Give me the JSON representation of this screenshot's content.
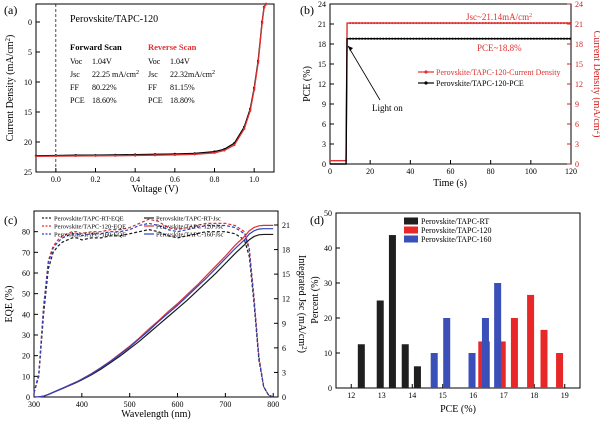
{
  "chart_data": [
    {
      "panel": "(a)",
      "type": "line",
      "legend_title": "Perovskite/TAPC-120",
      "xlabel": "Voltage (V)",
      "ylabel": "Current Density (mA/cm",
      "ylabel_sup": "2",
      "ylabel_end": ")",
      "xlim": [
        -0.1,
        1.1
      ],
      "ylim": [
        25,
        -3
      ],
      "xticks": [
        0.0,
        0.2,
        0.4,
        0.6,
        0.8,
        1.0
      ],
      "xtick_labels": [
        "0.0",
        "0.2",
        "0.4",
        "0.6",
        "0.8",
        "1.0"
      ],
      "yticks": [
        0,
        5,
        10,
        15,
        20,
        25
      ],
      "ytick_labels": [
        "0",
        "5",
        "10",
        "15",
        "20",
        "25"
      ],
      "series": [
        {
          "name": "Forward Scan",
          "color": "#000000",
          "x": [
            -0.1,
            0.0,
            0.1,
            0.2,
            0.3,
            0.4,
            0.5,
            0.6,
            0.7,
            0.8,
            0.85,
            0.9,
            0.95,
            0.98,
            1.0,
            1.02,
            1.04,
            1.05,
            1.06
          ],
          "y": [
            22.3,
            22.25,
            22.2,
            22.2,
            22.15,
            22.1,
            22.05,
            22.0,
            21.9,
            21.6,
            21.2,
            20.2,
            17.5,
            14.5,
            11.0,
            6.5,
            0.0,
            -2.5,
            -3.0
          ]
        },
        {
          "name": "Reverse Scan",
          "color": "#e03030",
          "x": [
            -0.1,
            0.0,
            0.1,
            0.2,
            0.3,
            0.4,
            0.5,
            0.6,
            0.7,
            0.8,
            0.85,
            0.9,
            0.95,
            0.98,
            1.0,
            1.02,
            1.04,
            1.05,
            1.06
          ],
          "y": [
            22.4,
            22.35,
            22.32,
            22.3,
            22.28,
            22.25,
            22.2,
            22.15,
            22.05,
            21.8,
            21.4,
            20.5,
            17.8,
            14.8,
            11.3,
            6.8,
            0.2,
            -2.4,
            -3.0
          ]
        }
      ],
      "table": {
        "forward_title": "Forward Scan",
        "reverse_title": "Reverse Scan",
        "rows": [
          {
            "k": "Voc",
            "f": "1.04V",
            "r": "1.04V"
          },
          {
            "k": "Jsc",
            "f": "22.25 mA/cm",
            "r": "22.32mA/cm",
            "sup": "2"
          },
          {
            "k": "FF",
            "f": "80.22%",
            "r": "81.15%"
          },
          {
            "k": "PCE",
            "f": "18.60%",
            "r": "18.80%"
          }
        ]
      }
    },
    {
      "panel": "(b)",
      "type": "line",
      "xlabel": "Time (s)",
      "ylabel": "PCE (%)",
      "ylabel_right": "Current Density (mA/cm",
      "ylabel_right_sup": "2",
      "ylabel_right_end": ")",
      "xlim": [
        0,
        120
      ],
      "ylim": [
        0,
        24
      ],
      "xticks": [
        0,
        20,
        40,
        60,
        80,
        100,
        120
      ],
      "yticks": [
        0,
        3,
        6,
        9,
        12,
        15,
        18,
        21,
        24
      ],
      "series": [
        {
          "name": "Perovskite/TAPC-120-Current Density",
          "color": "#e03030",
          "x": [
            0,
            8,
            8.5,
            9,
            120
          ],
          "y": [
            0.5,
            0.5,
            21.14,
            21.14,
            21.14
          ]
        },
        {
          "name": "Perovskite/TAPC-120-PCE",
          "color": "#000000",
          "x": [
            0,
            8,
            8.5,
            9,
            120
          ],
          "y": [
            0.0,
            0.0,
            18.8,
            18.8,
            18.8
          ]
        }
      ],
      "annotations": {
        "jsc": "Jsc~21.14mA/cm",
        "jsc_sup": "2",
        "pce": "PCE~18.8%",
        "light": "Light on"
      }
    },
    {
      "panel": "(c)",
      "type": "line",
      "xlabel": "Wavelength (nm)",
      "ylabel": "EQE (%)",
      "ylabel_right": "Integrated Jsc (mA/cm",
      "ylabel_right_sup": "2",
      "ylabel_right_end": ")",
      "xlim": [
        300,
        810
      ],
      "ylim": [
        0,
        90
      ],
      "ylim_right": [
        0,
        21
      ],
      "xticks": [
        300,
        400,
        500,
        600,
        700,
        800
      ],
      "yticks": [
        0,
        10,
        20,
        30,
        40,
        50,
        60,
        70,
        80
      ],
      "yticks_right": [
        0,
        3,
        6,
        9,
        12,
        15,
        18,
        21
      ],
      "wavelengths": [
        300,
        310,
        320,
        330,
        340,
        350,
        360,
        370,
        380,
        390,
        400,
        420,
        440,
        460,
        480,
        500,
        520,
        540,
        560,
        580,
        600,
        620,
        640,
        660,
        680,
        700,
        720,
        740,
        750,
        760,
        770,
        780,
        790,
        800
      ],
      "series": [
        {
          "name": "Perovskite/TAPC-RT-EQE",
          "color": "#1a1a1a",
          "dash": "3,2",
          "axis": "left",
          "y": [
            2,
            10,
            40,
            62,
            70,
            73,
            75,
            76,
            77,
            77,
            76,
            77,
            77,
            78,
            78,
            79,
            80,
            81,
            80,
            78,
            77,
            78,
            79,
            80,
            80,
            80,
            79,
            76,
            68,
            45,
            18,
            5,
            1,
            0
          ]
        },
        {
          "name": "Perovskite/TAPC-120-EQE",
          "color": "#e03030",
          "dash": "3,2",
          "axis": "left",
          "y": [
            2,
            11,
            44,
            66,
            73,
            76,
            78,
            79,
            80,
            80,
            79,
            80,
            80,
            81,
            81,
            82,
            84,
            86,
            85,
            82,
            81,
            82,
            83,
            84,
            84,
            84,
            83,
            80,
            72,
            48,
            20,
            5,
            1,
            0
          ]
        },
        {
          "name": "Perovskite/TAPC-160-EQE",
          "color": "#3040c0",
          "dash": "3,2",
          "axis": "left",
          "y": [
            2,
            11,
            43,
            65,
            72,
            75,
            77,
            78,
            79,
            79,
            78,
            79,
            79,
            80,
            80,
            81,
            83,
            84,
            83,
            81,
            80,
            81,
            82,
            83,
            83,
            83,
            82,
            79,
            71,
            47,
            19,
            5,
            1,
            0
          ]
        },
        {
          "name": "Perovskite/TAPC-RT-Jsc",
          "color": "#1a1a1a",
          "dash": "",
          "axis": "right",
          "y": [
            0,
            0.02,
            0.1,
            0.3,
            0.55,
            0.8,
            1.05,
            1.3,
            1.55,
            1.8,
            2.1,
            2.7,
            3.4,
            4.2,
            5.0,
            5.9,
            6.8,
            7.8,
            8.8,
            9.8,
            10.8,
            11.8,
            12.9,
            14.0,
            15.1,
            16.3,
            17.5,
            18.6,
            19.2,
            19.6,
            19.8,
            19.85,
            19.85,
            19.85
          ]
        },
        {
          "name": "Perovskite/TAPC-120-Jsc",
          "color": "#e03030",
          "dash": "",
          "axis": "right",
          "y": [
            0,
            0.02,
            0.1,
            0.32,
            0.58,
            0.84,
            1.1,
            1.36,
            1.62,
            1.88,
            2.2,
            2.85,
            3.6,
            4.4,
            5.3,
            6.2,
            7.2,
            8.3,
            9.3,
            10.4,
            11.4,
            12.5,
            13.6,
            14.8,
            16.0,
            17.2,
            18.5,
            19.6,
            20.3,
            20.7,
            20.9,
            20.95,
            20.95,
            20.95
          ]
        },
        {
          "name": "Perovskite/TAPC-160-Jsc",
          "color": "#3040c0",
          "dash": "",
          "axis": "right",
          "y": [
            0,
            0.02,
            0.1,
            0.31,
            0.57,
            0.83,
            1.08,
            1.34,
            1.6,
            1.86,
            2.17,
            2.8,
            3.55,
            4.35,
            5.2,
            6.1,
            7.1,
            8.1,
            9.2,
            10.2,
            11.2,
            12.3,
            13.4,
            14.5,
            15.7,
            16.9,
            18.1,
            19.2,
            19.9,
            20.3,
            20.5,
            20.55,
            20.55,
            20.55
          ]
        }
      ]
    },
    {
      "panel": "(d)",
      "type": "bar",
      "xlabel": "PCE (%)",
      "ylabel": "Percent (%)",
      "xlim": [
        11.5,
        19.5
      ],
      "ylim": [
        0,
        50
      ],
      "xticks": [
        12,
        13,
        14,
        15,
        16,
        17,
        18,
        19
      ],
      "yticks": [
        0,
        10,
        20,
        30,
        40,
        50
      ],
      "bar_width": 0.23,
      "series": [
        {
          "name": "Perovskite/TAPC-RT",
          "color": "#1f1f1f",
          "x": [
            12.33,
            12.95,
            13.35,
            13.77,
            14.17,
            16.42
          ],
          "values": [
            12.5,
            25,
            43.7,
            12.5,
            6.2,
            13.3
          ]
        },
        {
          "name": "Perovskite/TAPC-120",
          "color": "#e82828",
          "x": [
            16.28,
            16.95,
            17.35,
            17.88,
            18.32,
            18.83
          ],
          "values": [
            13.3,
            13.3,
            20,
            26.6,
            16.6,
            10
          ]
        },
        {
          "name": "Perovskite/TAPC-160",
          "color": "#3a4fb8",
          "x": [
            14.72,
            15.13,
            15.96,
            16.4,
            16.8
          ],
          "values": [
            10,
            20,
            10,
            20,
            30
          ]
        }
      ]
    }
  ]
}
